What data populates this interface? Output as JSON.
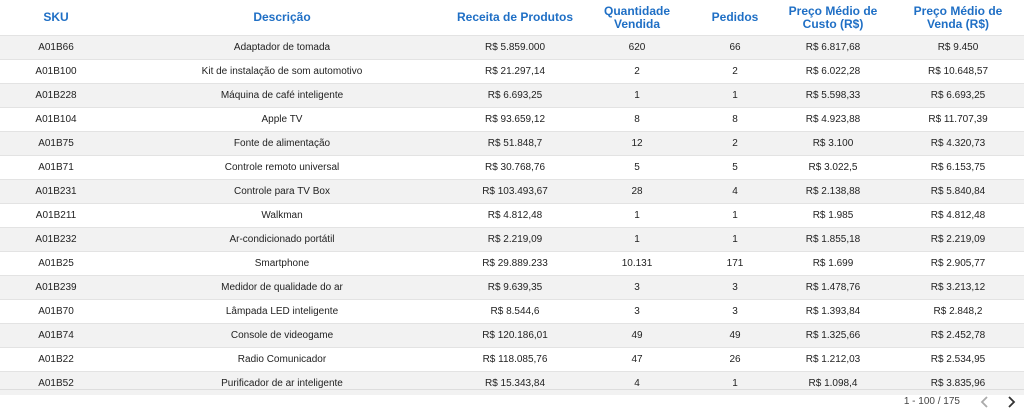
{
  "table": {
    "columns": [
      "SKU",
      "Descrição",
      "Receita de Produtos",
      "Quantidade Vendida",
      "Pedidos",
      "Preço Médio de Custo (R$)",
      "Preço Médio de Venda (R$)"
    ],
    "rows": [
      [
        "A01B66",
        "Adaptador de tomada",
        "R$ 5.859.000",
        "620",
        "66",
        "R$ 6.817,68",
        "R$ 9.450"
      ],
      [
        "A01B100",
        "Kit de instalação de som automotivo",
        "R$ 21.297,14",
        "2",
        "2",
        "R$ 6.022,28",
        "R$ 10.648,57"
      ],
      [
        "A01B228",
        "Máquina de café inteligente",
        "R$ 6.693,25",
        "1",
        "1",
        "R$ 5.598,33",
        "R$ 6.693,25"
      ],
      [
        "A01B104",
        "Apple TV",
        "R$ 93.659,12",
        "8",
        "8",
        "R$ 4.923,88",
        "R$ 11.707,39"
      ],
      [
        "A01B75",
        "Fonte de alimentação",
        "R$ 51.848,7",
        "12",
        "2",
        "R$ 3.100",
        "R$ 4.320,73"
      ],
      [
        "A01B71",
        "Controle remoto universal",
        "R$ 30.768,76",
        "5",
        "5",
        "R$ 3.022,5",
        "R$ 6.153,75"
      ],
      [
        "A01B231",
        "Controle para TV Box",
        "R$ 103.493,67",
        "28",
        "4",
        "R$ 2.138,88",
        "R$ 5.840,84"
      ],
      [
        "A01B211",
        "Walkman",
        "R$ 4.812,48",
        "1",
        "1",
        "R$ 1.985",
        "R$ 4.812,48"
      ],
      [
        "A01B232",
        "Ar-condicionado portátil",
        "R$ 2.219,09",
        "1",
        "1",
        "R$ 1.855,18",
        "R$ 2.219,09"
      ],
      [
        "A01B25",
        "Smartphone",
        "R$ 29.889.233",
        "10.131",
        "171",
        "R$ 1.699",
        "R$ 2.905,77"
      ],
      [
        "A01B239",
        "Medidor de qualidade do ar",
        "R$ 9.639,35",
        "3",
        "3",
        "R$ 1.478,76",
        "R$ 3.213,12"
      ],
      [
        "A01B70",
        "Lâmpada LED inteligente",
        "R$ 8.544,6",
        "3",
        "3",
        "R$ 1.393,84",
        "R$ 2.848,2"
      ],
      [
        "A01B74",
        "Console de videogame",
        "R$ 120.186,01",
        "49",
        "49",
        "R$ 1.325,66",
        "R$ 2.452,78"
      ],
      [
        "A01B22",
        "Radio Comunicador",
        "R$ 118.085,76",
        "47",
        "26",
        "R$ 1.212,03",
        "R$ 2.534,95"
      ],
      [
        "A01B52",
        "Purificador de ar inteligente",
        "R$ 15.343,84",
        "4",
        "1",
        "R$ 1.098,4",
        "R$ 3.835,96"
      ]
    ],
    "pagination": "1 - 100 / 175"
  }
}
